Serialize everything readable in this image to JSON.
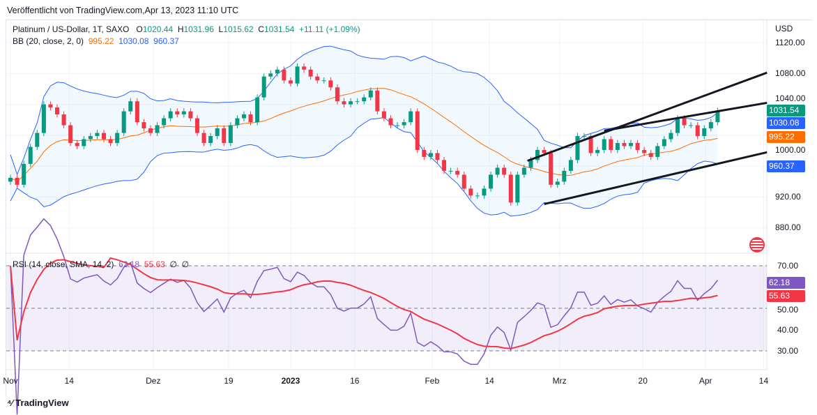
{
  "published": "Veröffentlicht von TradingView.com,Apr 13, 2023 11:10 UTC",
  "symbol": {
    "title": "Platinum / US-Dollar, 1T, SAXO",
    "o_label": "O",
    "o": "1020.44",
    "h_label": "H",
    "h": "1031.96",
    "l_label": "L",
    "l": "1015.62",
    "c_label": "C",
    "c": "1031.54",
    "change": "+11.11 (+1.09%)"
  },
  "bb": {
    "label": "BB (20, close, 2, 0)",
    "basis": "995.22",
    "upper": "1030.08",
    "lower": "960.37"
  },
  "rsi": {
    "label": "RSI (14, close, SMA, 14, 2)",
    "rsi": "62.18",
    "sma": "55.63",
    "na1": "∅",
    "na2": "∅"
  },
  "price_axis": {
    "currency": "USD",
    "ticks": [
      "1120.00",
      "1080.00",
      "1040.00",
      "1000.00",
      "920.00",
      "880.00"
    ]
  },
  "rsi_axis": {
    "ticks": [
      "70.00",
      "50.00",
      "40.00",
      "30.00"
    ]
  },
  "tags": {
    "close": "1031.54",
    "upper": "1030.08",
    "basis": "995.22",
    "lower": "960.37",
    "rsi": "62.18",
    "rsi_sma": "55.63"
  },
  "colors": {
    "up": "#089981",
    "down": "#f23645",
    "basis": "#ff6d00",
    "band": "#2962ff",
    "rsi": "#7e57c2",
    "rsi_sma": "#f23645"
  },
  "footer": {
    "brand": "TradingView"
  },
  "chart_data": {
    "type": "candlestick",
    "closes": [
      945,
      936,
      963,
      985,
      1003,
      1040,
      1036,
      1027,
      1013,
      990,
      986,
      995,
      999,
      1003,
      995,
      990,
      1003,
      1031,
      1044,
      1017,
      1009,
      1003,
      1013,
      1022,
      1031,
      1027,
      1031,
      1022,
      1003,
      990,
      999,
      1009,
      990,
      1013,
      1022,
      1027,
      1017,
      1049,
      1076,
      1080,
      1085,
      1071,
      1067,
      1089,
      1085,
      1076,
      1071,
      1071,
      1062,
      1044,
      1040,
      1044,
      1044,
      1049,
      1058,
      1031,
      1022,
      1013,
      1013,
      1017,
      1031,
      981,
      972,
      977,
      968,
      954,
      954,
      949,
      931,
      922,
      922,
      931,
      949,
      958,
      949,
      913,
      949,
      958,
      968,
      981,
      977,
      936,
      940,
      954,
      968,
      999,
      999,
      977,
      981,
      995,
      981,
      990,
      986,
      990,
      981,
      977,
      972,
      986,
      995,
      1003,
      1022,
      1013,
      1013,
      999,
      1009,
      1017,
      1031.54
    ],
    "x_labels": [
      {
        "t": "Nov",
        "i": 0
      },
      {
        "t": "14",
        "i": 8.8
      },
      {
        "t": "Dez",
        "i": 21.4
      },
      {
        "t": "19",
        "i": 32.7
      },
      {
        "t": "2023",
        "i": 42
      },
      {
        "t": "16",
        "i": 51.6
      },
      {
        "t": "Feb",
        "i": 63.2
      },
      {
        "t": "14",
        "i": 71.8
      },
      {
        "t": "Mrz",
        "i": 82.3
      },
      {
        "t": "20",
        "i": 94.8
      },
      {
        "t": "Apr",
        "i": 104.2
      },
      {
        "t": "14",
        "i": 112.9
      }
    ],
    "trendlines": [
      [
        [
          77.5,
          967
        ],
        [
          113.4,
          1081
        ]
      ],
      [
        [
          89,
          1006
        ],
        [
          113.4,
          1042
        ]
      ],
      [
        [
          80,
          911
        ],
        [
          113.4,
          978
        ]
      ]
    ],
    "ylim": [
      880,
      1120
    ],
    "rsi_ylim": [
      30,
      70
    ]
  }
}
